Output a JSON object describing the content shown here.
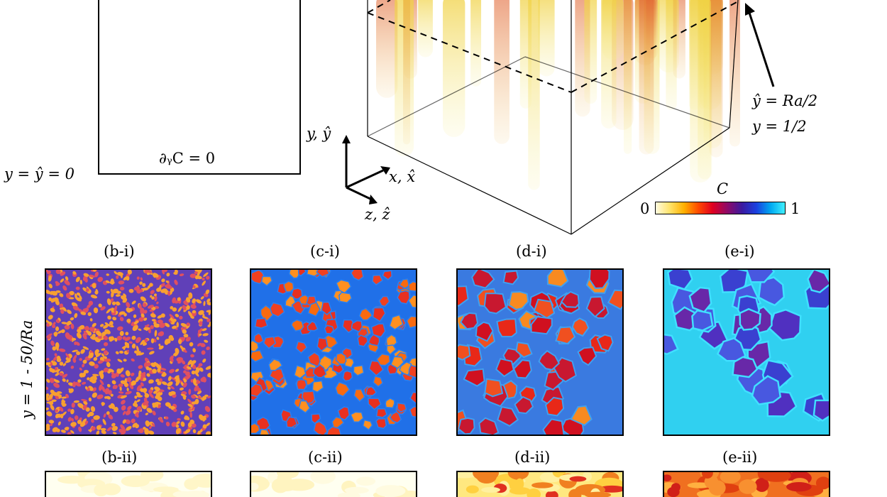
{
  "domain_box": {
    "bottom_left_label": "y = ŷ = 0",
    "bottom_bc": "∂ᵧC = 0"
  },
  "box3d": {
    "plane_label_line1": "ŷ = Ra/2",
    "plane_label_line2": "y = 1/2"
  },
  "axes": {
    "y_label": "y, ŷ",
    "x_label": "x, x̂",
    "z_label": "z, ẑ"
  },
  "colorbar": {
    "title": "C",
    "min_label": "0",
    "max_label": "1",
    "stops": [
      "#fffbe0",
      "#ffe36a",
      "#ffb000",
      "#ff4a00",
      "#e00020",
      "#8a0a6a",
      "#3a1aa0",
      "#1a40e0",
      "#00a8f0",
      "#40f0ff"
    ]
  },
  "row_label": "y =   1 - 50/Ra",
  "panels_row1": [
    {
      "id": "b-i",
      "label": "(b-i)"
    },
    {
      "id": "c-i",
      "label": "(c-i)"
    },
    {
      "id": "d-i",
      "label": "(d-i)"
    },
    {
      "id": "e-i",
      "label": "(e-i)"
    }
  ],
  "panels_row2": [
    {
      "id": "b-ii",
      "label": "(b-ii)"
    },
    {
      "id": "c-ii",
      "label": "(c-ii)"
    },
    {
      "id": "d-ii",
      "label": "(d-ii)"
    },
    {
      "id": "e-ii",
      "label": "(e-ii)"
    }
  ]
}
